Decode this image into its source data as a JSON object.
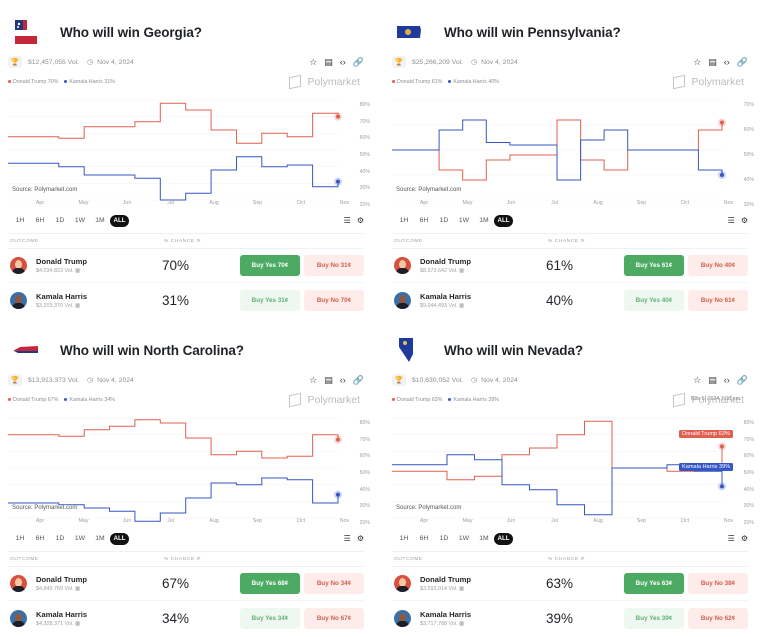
{
  "common": {
    "outcome_header": "OUTCOME",
    "chance_header": "% CHANCE",
    "source_label": "Source: Polymarket.com",
    "brand": "Polymarket",
    "date": "Nov 4, 2024",
    "ranges": [
      "1H",
      "6H",
      "1D",
      "1W",
      "1M",
      "ALL"
    ],
    "active_range": "ALL",
    "months": [
      "Apr",
      "May",
      "Jun",
      "Jul",
      "Aug",
      "Sep",
      "Oct",
      "Nov"
    ],
    "colors": {
      "trump": "#e0604f",
      "harris": "#3557c4",
      "yes": "#4caa63",
      "no_text": "#d2604d"
    },
    "icons": {
      "trophy": "trophy-icon",
      "clock": "clock-icon",
      "star": "star-icon",
      "doc": "document-icon",
      "embed": "code-icon",
      "link": "link-icon",
      "filter": "sliders-icon",
      "settings": "gear-icon"
    }
  },
  "markets": [
    {
      "title": "Who will win Georgia?",
      "volume": "$12,457,055 Vol.",
      "date": "Nov 4, 2024",
      "legend": {
        "trump": "Donald Trump 70%",
        "harris": "Kamala Harris 31%"
      },
      "yticks": [
        "80%",
        "70%",
        "60%",
        "50%",
        "40%",
        "30%",
        "20%"
      ],
      "outcomes": [
        {
          "name": "Donald Trump",
          "volume": "$4,034,823 Vol.",
          "chance": "70%",
          "yes": "Buy Yes 70¢",
          "no": "Buy No 31¢",
          "yes_style": "strong"
        },
        {
          "name": "Kamala Harris",
          "volume": "$3,203,370 Vol.",
          "chance": "31%",
          "yes": "Buy Yes 31¢",
          "no": "Buy No 70¢",
          "yes_style": "soft"
        }
      ]
    },
    {
      "title": "Who will win Pennsylvania?",
      "volume": "$25,266,209 Vol.",
      "date": "Nov 4, 2024",
      "legend": {
        "trump": "Donald Trump 61%",
        "harris": "Kamala Harris 40%"
      },
      "yticks": [
        "70%",
        "60%",
        "50%",
        "40%",
        "30%"
      ],
      "outcomes": [
        {
          "name": "Donald Trump",
          "volume": "$8,573,642 Vol.",
          "chance": "61%",
          "yes": "Buy Yes 61¢",
          "no": "Buy No 40¢",
          "yes_style": "strong"
        },
        {
          "name": "Kamala Harris",
          "volume": "$9,044,493 Vol.",
          "chance": "40%",
          "yes": "Buy Yes 40¢",
          "no": "Buy No 61¢",
          "yes_style": "soft"
        }
      ]
    },
    {
      "title": "Who will win North Carolina?",
      "volume": "$13,913,373 Vol.",
      "date": "Nov 4, 2024",
      "legend": {
        "trump": "Donald Trump 67%",
        "harris": "Kamala Harris 34%"
      },
      "yticks": [
        "80%",
        "70%",
        "60%",
        "50%",
        "40%",
        "30%",
        "20%"
      ],
      "outcomes": [
        {
          "name": "Donald Trump",
          "volume": "$4,849,769 Vol.",
          "chance": "67%",
          "yes": "Buy Yes 68¢",
          "no": "Buy No 34¢",
          "yes_style": "strong"
        },
        {
          "name": "Kamala Harris",
          "volume": "$4,328,371 Vol.",
          "chance": "34%",
          "yes": "Buy Yes 34¢",
          "no": "Buy No 67¢",
          "yes_style": "soft"
        }
      ]
    },
    {
      "title": "Who will win Nevada?",
      "volume": "$10,630,052 Vol.",
      "date": "Nov 4, 2024",
      "legend": {
        "trump": "Donald Trump 63%",
        "harris": "Kamala Harris 39%"
      },
      "hover_date": "Nov 5, 2024 2:08 pm",
      "hover_tags": {
        "trump": "Donald Trump 63%",
        "harris": "Kamala Harris 39%"
      },
      "yticks": [
        "80%",
        "70%",
        "60%",
        "50%",
        "40%",
        "30%",
        "20%"
      ],
      "outcomes": [
        {
          "name": "Donald Trump",
          "volume": "$3,593,014 Vol.",
          "chance": "63%",
          "yes": "Buy Yes 63¢",
          "no": "Buy No 38¢",
          "yes_style": "strong"
        },
        {
          "name": "Kamala Harris",
          "volume": "$3,717,788 Vol.",
          "chance": "39%",
          "yes": "Buy Yes 39¢",
          "no": "Buy No 62¢",
          "yes_style": "soft"
        }
      ]
    }
  ],
  "chart_data": [
    {
      "type": "line",
      "title": "Who will win Georgia?",
      "ylim": [
        20,
        80
      ],
      "x": [
        "Mar",
        "Apr",
        "May",
        "mid-May",
        "Jun",
        "late-Jun",
        "Jul",
        "mid-Jul",
        "Aug",
        "mid-Aug",
        "Sep",
        "Oct",
        "late-Oct",
        "Nov"
      ],
      "series": [
        {
          "name": "Donald Trump",
          "values": [
            58,
            58,
            57,
            64,
            64,
            67,
            78,
            74,
            62,
            54,
            60,
            58,
            72,
            70
          ]
        },
        {
          "name": "Kamala Harris",
          "values": [
            42,
            42,
            40,
            35,
            35,
            33,
            20,
            24,
            38,
            46,
            40,
            41,
            28,
            31
          ]
        }
      ]
    },
    {
      "type": "line",
      "title": "Who will win Pennsylvania?",
      "ylim": [
        30,
        70
      ],
      "x": [
        "Mar",
        "Apr",
        "mid-Apr",
        "May",
        "mid-May",
        "Jun",
        "Jul",
        "mid-Jul",
        "Aug",
        "mid-Aug",
        "Sep",
        "mid-Sep",
        "Oct",
        "late-Oct",
        "Nov"
      ],
      "series": [
        {
          "name": "Donald Trump",
          "values": [
            50,
            50,
            42,
            38,
            46,
            48,
            48,
            62,
            46,
            42,
            50,
            50,
            50,
            58,
            61
          ]
        },
        {
          "name": "Kamala Harris",
          "values": [
            50,
            50,
            58,
            62,
            53,
            52,
            52,
            38,
            54,
            58,
            50,
            50,
            50,
            42,
            40
          ]
        }
      ]
    },
    {
      "type": "line",
      "title": "Who will win North Carolina?",
      "ylim": [
        20,
        80
      ],
      "x": [
        "Mar",
        "Apr",
        "May",
        "mid-May",
        "Jun",
        "Jul",
        "mid-Jul",
        "Aug",
        "mid-Aug",
        "Sep",
        "mid-Sep",
        "Oct",
        "late-Oct",
        "Nov"
      ],
      "series": [
        {
          "name": "Donald Trump",
          "values": [
            70,
            70,
            69,
            73,
            75,
            79,
            77,
            68,
            58,
            60,
            56,
            57,
            70,
            67
          ]
        },
        {
          "name": "Kamala Harris",
          "values": [
            29,
            29,
            28,
            26,
            24,
            18,
            23,
            32,
            41,
            40,
            44,
            43,
            29,
            34
          ]
        }
      ]
    },
    {
      "type": "line",
      "title": "Who will win Nevada?",
      "ylim": [
        20,
        80
      ],
      "x": [
        "Mar",
        "Apr",
        "mid-Apr",
        "May",
        "mid-May",
        "Jun",
        "Jul",
        "mid-Jul",
        "Aug",
        "Sep",
        "Oct",
        "late-Oct",
        "Nov"
      ],
      "series": [
        {
          "name": "Donald Trump",
          "values": [
            48,
            48,
            43,
            45,
            58,
            62,
            70,
            78,
            50,
            50,
            48,
            52,
            63
          ]
        },
        {
          "name": "Kamala Harris",
          "values": [
            52,
            52,
            58,
            55,
            40,
            37,
            28,
            22,
            50,
            50,
            52,
            48,
            39
          ]
        }
      ]
    }
  ]
}
